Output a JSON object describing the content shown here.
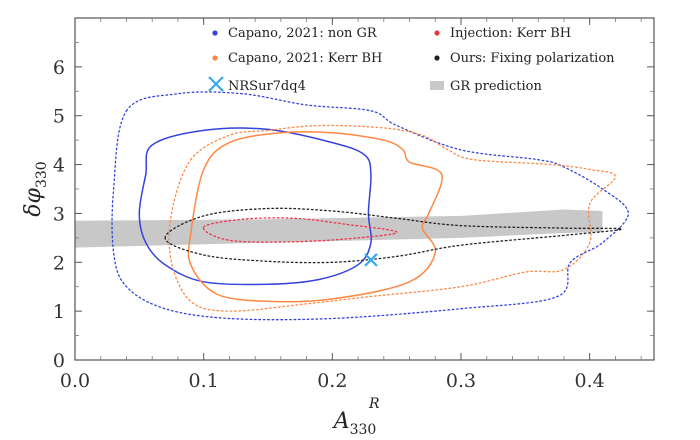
{
  "chart_data": {
    "type": "contour",
    "xlabel": "A",
    "xlabel_sup": "R",
    "xlabel_sub": "330",
    "ylabel": "δφ",
    "ylabel_sub": "330",
    "xlim": [
      0.0,
      0.45
    ],
    "ylim": [
      0,
      7
    ],
    "xticks": [
      0.0,
      0.1,
      0.2,
      0.3,
      0.4
    ],
    "xtick_labels": [
      "0.0",
      "0.1",
      "0.2",
      "0.3",
      "0.4"
    ],
    "yticks": [
      0,
      1,
      2,
      3,
      4,
      5,
      6
    ],
    "ytick_labels": [
      "0",
      "1",
      "2",
      "3",
      "4",
      "5",
      "6"
    ],
    "legend": [
      {
        "label": "Capano, 2021: non GR",
        "color": "#3344dd",
        "marker": "dot"
      },
      {
        "label": "Injection: Kerr BH",
        "color": "#ee3344",
        "marker": "dot"
      },
      {
        "label": "Capano, 2021: Kerr BH",
        "color": "#ff8844",
        "marker": "dot"
      },
      {
        "label": "Ours: Fixing polarization",
        "color": "#222222",
        "marker": "dot"
      },
      {
        "label": "NRSur7dq4",
        "color": "#33aaee",
        "marker": "cross"
      },
      {
        "label": "GR prediction",
        "color": "#c8c8c8",
        "marker": "band"
      }
    ],
    "nrsur_point": {
      "x": 0.23,
      "y": 2.05
    },
    "gr_band": {
      "upper": [
        [
          0.0,
          2.85
        ],
        [
          0.15,
          2.88
        ],
        [
          0.3,
          2.95
        ],
        [
          0.38,
          3.08
        ],
        [
          0.41,
          3.05
        ]
      ],
      "lower": [
        [
          0.41,
          2.62
        ],
        [
          0.38,
          2.6
        ],
        [
          0.3,
          2.5
        ],
        [
          0.15,
          2.4
        ],
        [
          0.0,
          2.3
        ]
      ]
    },
    "contours": [
      {
        "series": "Capano, 2021: non GR",
        "level": "inner",
        "style": "solid",
        "color": "#3344dd",
        "points": [
          [
            0.06,
            4.4
          ],
          [
            0.1,
            4.7
          ],
          [
            0.15,
            4.72
          ],
          [
            0.2,
            4.45
          ],
          [
            0.225,
            4.2
          ],
          [
            0.23,
            3.8
          ],
          [
            0.228,
            3.0
          ],
          [
            0.23,
            2.4
          ],
          [
            0.22,
            1.95
          ],
          [
            0.19,
            1.65
          ],
          [
            0.15,
            1.55
          ],
          [
            0.1,
            1.6
          ],
          [
            0.07,
            1.95
          ],
          [
            0.055,
            2.4
          ],
          [
            0.05,
            3.0
          ],
          [
            0.055,
            3.8
          ]
        ]
      },
      {
        "series": "Capano, 2021: non GR",
        "level": "outer",
        "style": "dotted",
        "color": "#3344dd",
        "points": [
          [
            0.04,
            5.1
          ],
          [
            0.08,
            5.45
          ],
          [
            0.13,
            5.45
          ],
          [
            0.18,
            5.22
          ],
          [
            0.23,
            5.1
          ],
          [
            0.25,
            4.8
          ],
          [
            0.3,
            4.3
          ],
          [
            0.36,
            4.1
          ],
          [
            0.38,
            3.95
          ],
          [
            0.41,
            3.5
          ],
          [
            0.43,
            3.0
          ],
          [
            0.41,
            2.4
          ],
          [
            0.385,
            2.0
          ],
          [
            0.375,
            1.3
          ],
          [
            0.3,
            1.05
          ],
          [
            0.2,
            0.85
          ],
          [
            0.12,
            0.85
          ],
          [
            0.07,
            1.05
          ],
          [
            0.04,
            1.5
          ],
          [
            0.03,
            2.2
          ],
          [
            0.03,
            3.5
          ]
        ]
      },
      {
        "series": "Capano, 2021: Kerr BH",
        "level": "inner",
        "style": "solid",
        "color": "#ff8844",
        "points": [
          [
            0.1,
            3.9
          ],
          [
            0.12,
            4.45
          ],
          [
            0.16,
            4.65
          ],
          [
            0.2,
            4.65
          ],
          [
            0.24,
            4.5
          ],
          [
            0.255,
            4.3
          ],
          [
            0.26,
            4.05
          ],
          [
            0.285,
            3.8
          ],
          [
            0.275,
            3.0
          ],
          [
            0.27,
            2.7
          ],
          [
            0.28,
            2.2
          ],
          [
            0.26,
            1.6
          ],
          [
            0.2,
            1.25
          ],
          [
            0.15,
            1.2
          ],
          [
            0.11,
            1.35
          ],
          [
            0.09,
            1.95
          ],
          [
            0.09,
            2.6
          ]
        ]
      },
      {
        "series": "Capano, 2021: Kerr BH",
        "level": "outer",
        "style": "dotted",
        "color": "#ff8844",
        "points": [
          [
            0.09,
            4.1
          ],
          [
            0.12,
            4.6
          ],
          [
            0.15,
            4.7
          ],
          [
            0.19,
            4.8
          ],
          [
            0.24,
            4.75
          ],
          [
            0.27,
            4.6
          ],
          [
            0.29,
            4.3
          ],
          [
            0.31,
            4.1
          ],
          [
            0.37,
            4.0
          ],
          [
            0.4,
            3.9
          ],
          [
            0.42,
            3.75
          ],
          [
            0.4,
            3.2
          ],
          [
            0.4,
            2.4
          ],
          [
            0.38,
            1.85
          ],
          [
            0.35,
            1.8
          ],
          [
            0.3,
            1.5
          ],
          [
            0.23,
            1.3
          ],
          [
            0.18,
            1.15
          ],
          [
            0.12,
            1.0
          ],
          [
            0.09,
            1.2
          ],
          [
            0.075,
            2.0
          ],
          [
            0.075,
            3.0
          ]
        ]
      },
      {
        "series": "Injection: Kerr BH",
        "level": "inner",
        "style": "dotted",
        "color": "#ee3344",
        "points": [
          [
            0.1,
            2.72
          ],
          [
            0.13,
            2.88
          ],
          [
            0.17,
            2.9
          ],
          [
            0.21,
            2.78
          ],
          [
            0.25,
            2.62
          ],
          [
            0.22,
            2.5
          ],
          [
            0.17,
            2.42
          ],
          [
            0.12,
            2.45
          ]
        ]
      },
      {
        "series": "Ours: Fixing polarization",
        "level": "inner",
        "style": "dotted",
        "color": "#222222",
        "points": [
          [
            0.07,
            2.5
          ],
          [
            0.1,
            2.95
          ],
          [
            0.15,
            3.1
          ],
          [
            0.2,
            3.05
          ],
          [
            0.25,
            2.9
          ],
          [
            0.3,
            2.75
          ],
          [
            0.38,
            2.7
          ],
          [
            0.425,
            2.68
          ],
          [
            0.38,
            2.55
          ],
          [
            0.3,
            2.35
          ],
          [
            0.25,
            2.12
          ],
          [
            0.2,
            2.0
          ],
          [
            0.15,
            2.02
          ],
          [
            0.1,
            2.15
          ]
        ]
      }
    ]
  }
}
